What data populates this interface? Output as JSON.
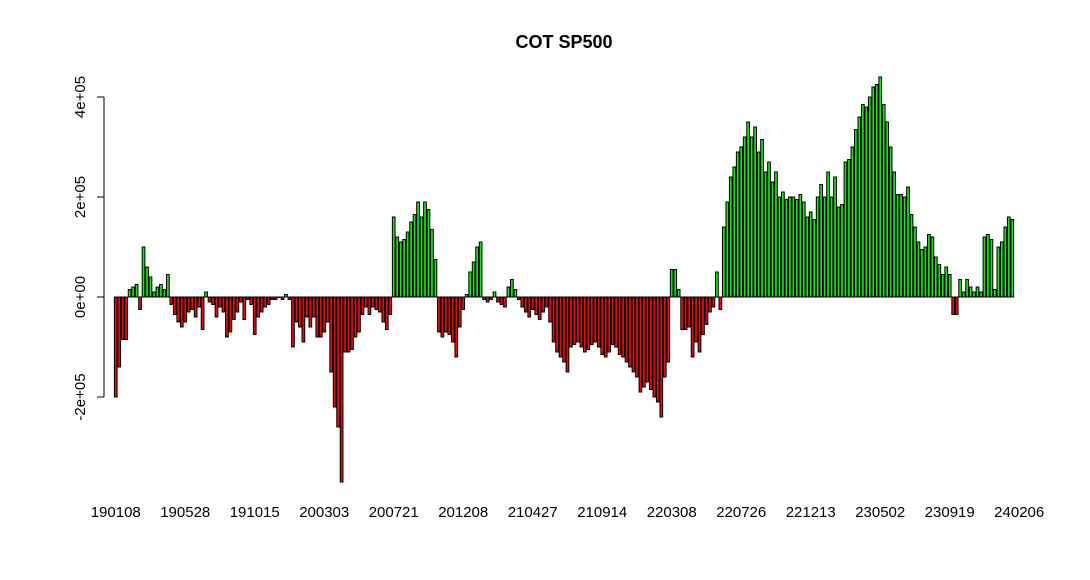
{
  "chart_data": {
    "type": "bar",
    "title": "COT SP500",
    "xlabel": "",
    "ylabel": "",
    "ylim": [
      -370000,
      440000
    ],
    "yticks": [
      -200000,
      0,
      200000,
      400000
    ],
    "ytick_labels": [
      "-2e+05",
      "0e+00",
      "2e+05",
      "4e+05"
    ],
    "xtick_labels": [
      "190108",
      "190528",
      "191015",
      "200303",
      "200721",
      "201208",
      "210427",
      "210914",
      "220308",
      "220726",
      "221213",
      "230502",
      "230919",
      "240206"
    ],
    "xtick_every": 20,
    "grid": false,
    "legend": "none",
    "colors": {
      "positive": "#22dd22",
      "negative": "#dd1111",
      "outline": "#000000"
    },
    "values": [
      -200000,
      -140000,
      -85000,
      -85000,
      15000,
      20000,
      25000,
      -25000,
      100000,
      60000,
      40000,
      10000,
      20000,
      25000,
      15000,
      45000,
      -15000,
      -35000,
      -50000,
      -60000,
      -50000,
      -30000,
      -25000,
      -40000,
      -20000,
      -65000,
      10000,
      -10000,
      -15000,
      -40000,
      -20000,
      -30000,
      -80000,
      -70000,
      -45000,
      -30000,
      -10000,
      -45000,
      -5000,
      -15000,
      -75000,
      -40000,
      -30000,
      -20000,
      -15000,
      -5000,
      -5000,
      0,
      -5000,
      5000,
      -5000,
      -100000,
      -50000,
      -60000,
      -90000,
      -40000,
      -60000,
      -40000,
      -80000,
      -80000,
      -70000,
      -50000,
      -150000,
      -220000,
      -260000,
      -370000,
      -110000,
      -110000,
      -105000,
      -80000,
      -70000,
      -35000,
      -20000,
      -35000,
      -20000,
      -25000,
      -30000,
      -50000,
      -65000,
      -35000,
      160000,
      120000,
      110000,
      115000,
      130000,
      150000,
      165000,
      190000,
      160000,
      190000,
      175000,
      135000,
      75000,
      -70000,
      -80000,
      -70000,
      -75000,
      -90000,
      -120000,
      -60000,
      -25000,
      5000,
      50000,
      70000,
      100000,
      110000,
      -5000,
      -10000,
      -5000,
      10000,
      -10000,
      -15000,
      -20000,
      20000,
      35000,
      15000,
      -5000,
      -20000,
      -30000,
      -40000,
      -25000,
      -35000,
      -45000,
      -30000,
      -20000,
      -50000,
      -90000,
      -110000,
      -120000,
      -130000,
      -150000,
      -100000,
      -95000,
      -90000,
      -100000,
      -110000,
      -105000,
      -95000,
      -90000,
      -100000,
      -115000,
      -120000,
      -110000,
      -95000,
      -100000,
      -115000,
      -120000,
      -130000,
      -140000,
      -150000,
      -160000,
      -190000,
      -180000,
      -170000,
      -185000,
      -200000,
      -210000,
      -240000,
      -160000,
      -130000,
      55000,
      55000,
      15000,
      -65000,
      -65000,
      -60000,
      -120000,
      -90000,
      -110000,
      -75000,
      -55000,
      -30000,
      -20000,
      50000,
      -25000,
      140000,
      190000,
      240000,
      260000,
      290000,
      300000,
      320000,
      350000,
      320000,
      340000,
      290000,
      315000,
      250000,
      270000,
      230000,
      250000,
      200000,
      210000,
      195000,
      200000,
      200000,
      195000,
      205000,
      190000,
      160000,
      170000,
      155000,
      200000,
      225000,
      200000,
      250000,
      200000,
      240000,
      180000,
      185000,
      270000,
      275000,
      300000,
      335000,
      360000,
      385000,
      380000,
      400000,
      420000,
      425000,
      440000,
      385000,
      350000,
      300000,
      250000,
      205000,
      205000,
      200000,
      220000,
      165000,
      140000,
      110000,
      95000,
      100000,
      125000,
      120000,
      80000,
      65000,
      45000,
      60000,
      45000,
      -35000,
      -35000,
      35000,
      10000,
      35000,
      20000,
      10000,
      20000,
      10000,
      120000,
      125000,
      115000,
      15000,
      100000,
      110000,
      140000,
      160000,
      155000
    ]
  }
}
